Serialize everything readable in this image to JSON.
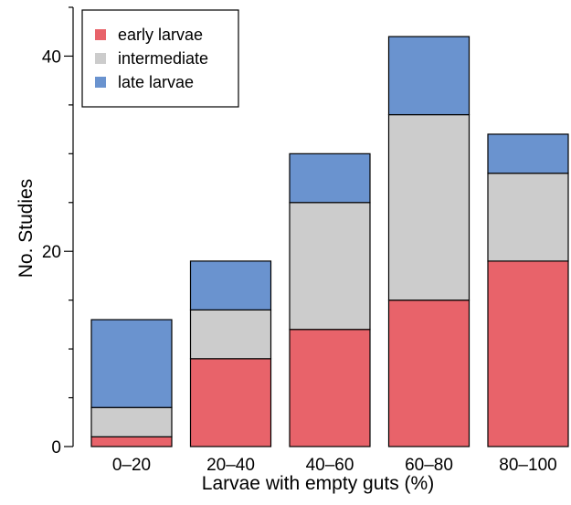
{
  "chart_data": {
    "type": "bar",
    "stacked": true,
    "categories": [
      "0–20",
      "20–40",
      "40–60",
      "60–80",
      "80–100"
    ],
    "series": [
      {
        "name": "early larvae",
        "color": "#e8636a",
        "values": [
          1,
          9,
          12,
          15,
          19
        ]
      },
      {
        "name": "intermediate",
        "color": "#cccccc",
        "values": [
          3,
          5,
          13,
          19,
          9
        ]
      },
      {
        "name": "late larvae",
        "color": "#6a93cf",
        "values": [
          9,
          5,
          5,
          8,
          4
        ]
      }
    ],
    "title": "",
    "xlabel": "Larvae with empty guts (%)",
    "ylabel": "No. Studies",
    "ylim": [
      0,
      45
    ],
    "yticks": [
      0,
      20,
      40
    ],
    "grid": false,
    "legend_position": "top-left"
  }
}
